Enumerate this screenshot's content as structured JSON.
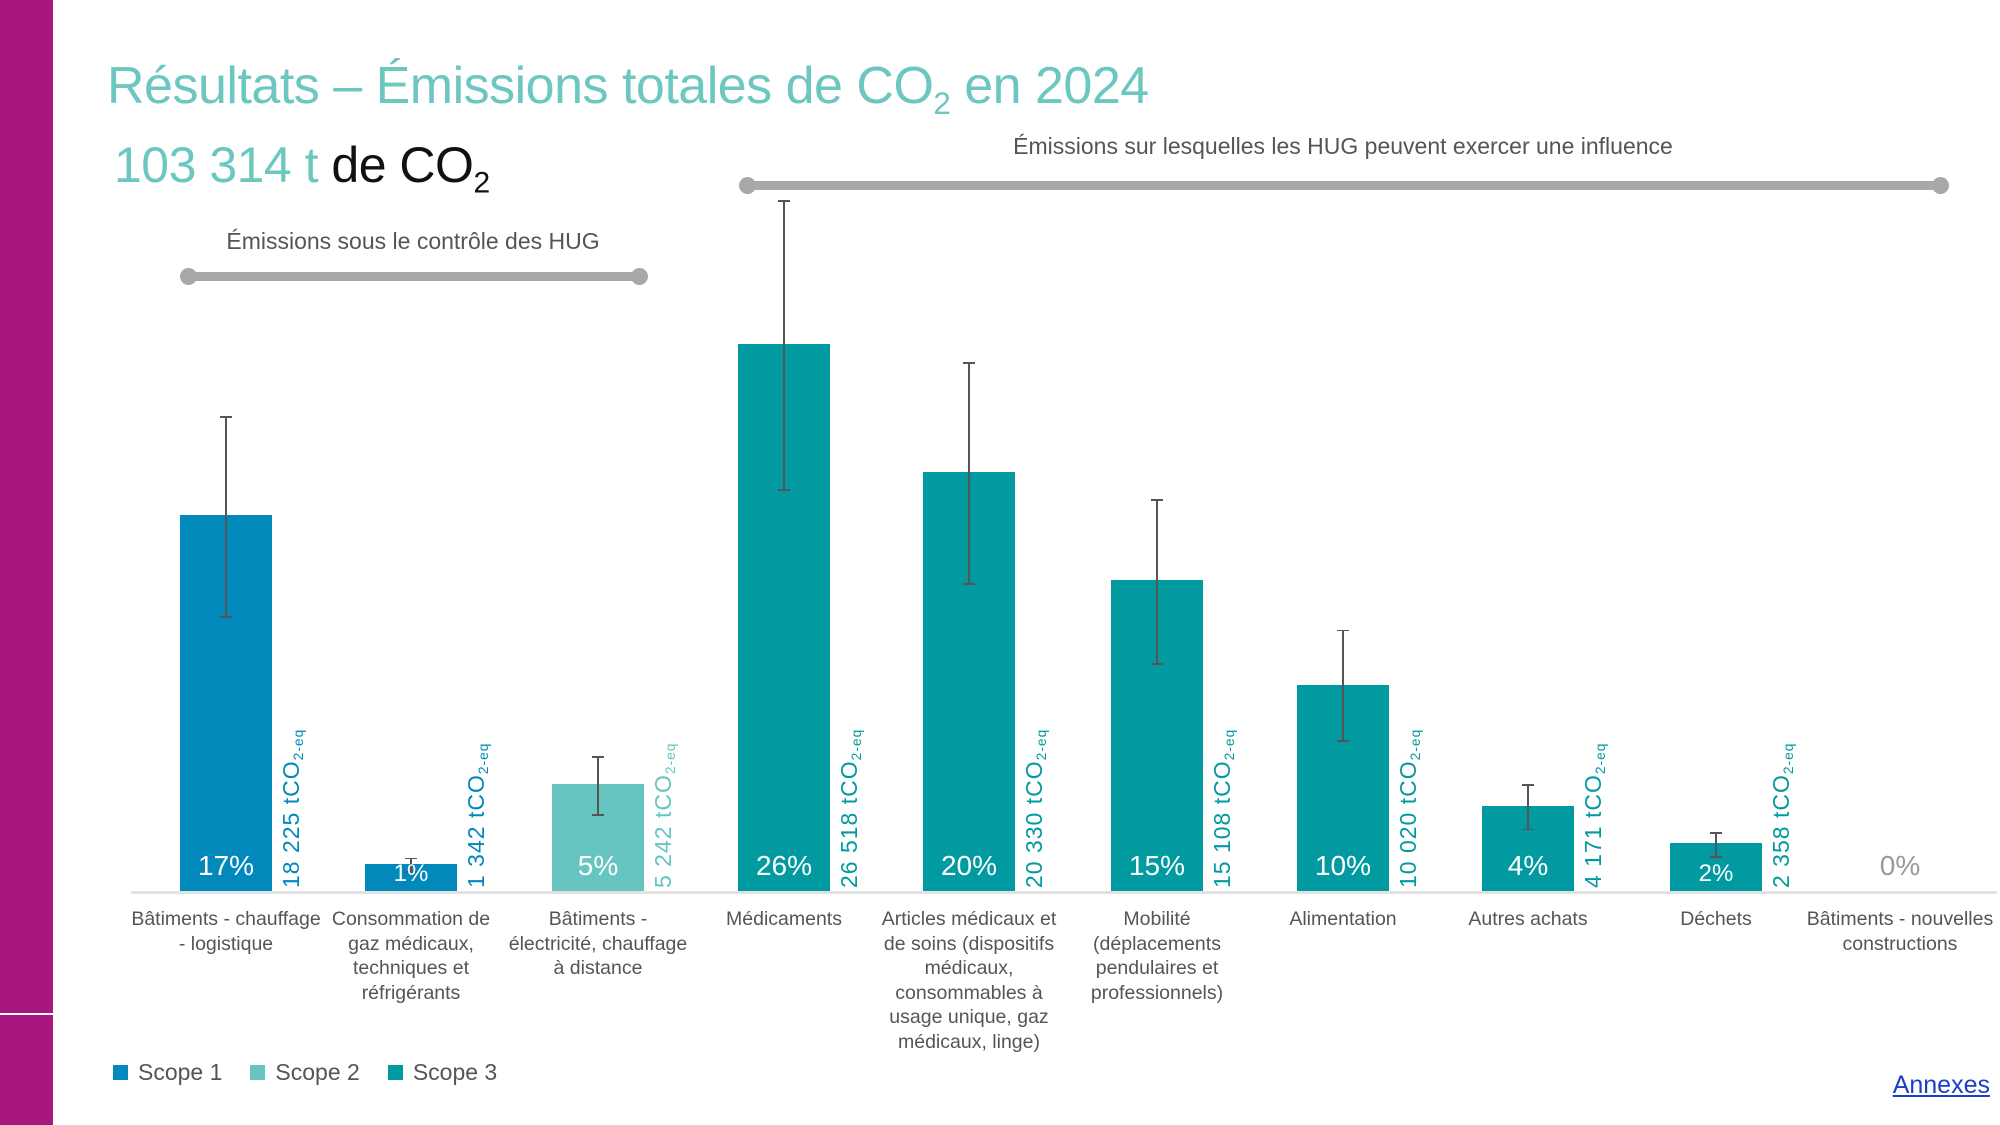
{
  "title": {
    "prefix": "Résultats – Émissions totales de CO",
    "sub": "2",
    "suffix": " en 2024"
  },
  "total": {
    "number": "103 314 t",
    "rest": " de CO",
    "sub": "2"
  },
  "brackets": {
    "control": "Émissions sous le contrôle des HUG",
    "influence": "Émissions sur lesquelles les HUG peuvent exercer une influence"
  },
  "colors": {
    "scope1": "#0089ba",
    "scope2": "#66c5c0",
    "scope3": "#009aa0",
    "accent": "#6cc7c0",
    "sidebar": "#a8177f"
  },
  "chart_data": {
    "type": "bar",
    "unit_label": "tCO",
    "unit_sub": "2-eq",
    "ylim": [
      0,
      34000
    ],
    "grid": false,
    "legend_placement": "bottom-left",
    "legend": [
      "Scope  1",
      "Scope  2",
      "Scope  3"
    ],
    "categories": [
      "Bâtiments - chauffage - logistique",
      "Consommation de gaz médicaux, techniques et réfrigérants",
      "Bâtiments - électricité, chauffage à distance",
      "Médicaments",
      "Articles médicaux et de soins (dispositifs médicaux, consommables à usage unique, gaz médicaux, linge)",
      "Mobilité (déplacements pendulaires et professionnels)",
      "Alimentation",
      "Autres achats",
      "Déchets",
      "Bâtiments - nouvelles constructions"
    ],
    "values": [
      18225,
      1342,
      5242,
      26518,
      20330,
      15108,
      10020,
      4171,
      2358,
      0
    ],
    "value_labels": [
      "18 225",
      "1 342",
      "5 242",
      "26 518",
      "20 330",
      "15 108",
      "10 020",
      "4 171",
      "2 358",
      ""
    ],
    "percent_labels": [
      "17%",
      "1%",
      "5%",
      "26%",
      "20%",
      "15%",
      "10%",
      "4%",
      "2%",
      "0%"
    ],
    "scope": [
      1,
      1,
      2,
      3,
      3,
      3,
      3,
      3,
      3,
      3
    ],
    "error_low": [
      13350,
      1000,
      3770,
      19500,
      14950,
      11080,
      7350,
      3050,
      1740,
      null
    ],
    "error_high": [
      23030,
      1650,
      6580,
      33480,
      25640,
      19010,
      12680,
      5220,
      2900,
      null
    ]
  },
  "link": {
    "annexes": "Annexes"
  }
}
